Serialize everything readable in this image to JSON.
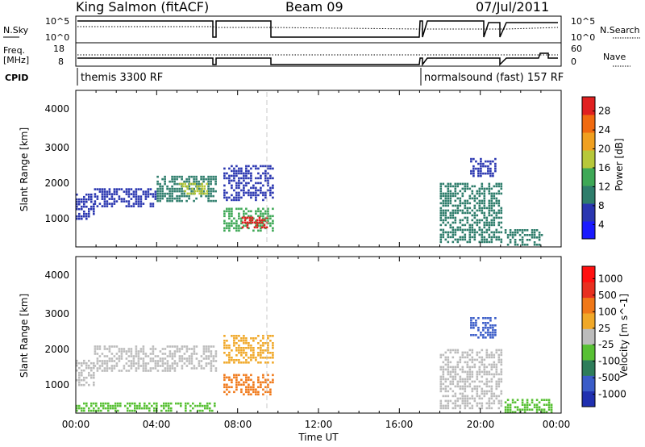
{
  "header": {
    "station": "King Salmon (fitACF)",
    "beam": "Beam 09",
    "date": "07/Jul/2011"
  },
  "side_labels": {
    "nsky": "N.Sky",
    "freq_line1": "Freq.",
    "freq_line2": "[MHz]",
    "cpid": "CPID",
    "nsearch": "N.Search",
    "nave": "Nave"
  },
  "small_axes": {
    "nsky_ticks": [
      "10^5",
      "10^0"
    ],
    "nsearch_ticks": [
      "10^5",
      "10^0"
    ],
    "freq_ticks": [
      "18",
      "8"
    ],
    "nave_ticks": [
      "60",
      "0"
    ]
  },
  "cpid_labels": [
    "themis 3300 RF",
    "normalsound (fast) 157 RF"
  ],
  "time_axis": {
    "label": "Time UT",
    "ticks": [
      "00:00",
      "04:00",
      "08:00",
      "12:00",
      "16:00",
      "20:00",
      "00:00"
    ]
  },
  "colors": {
    "power": [
      "#1a1aff",
      "#2a36b0",
      "#2e7d6b",
      "#3ea856",
      "#b7c83a",
      "#f0a020",
      "#f06a10",
      "#e02020"
    ],
    "velocity": [
      "#2030b0",
      "#3a5cc8",
      "#2e7d5a",
      "#58c034",
      "#bcbcbc",
      "#f0a828",
      "#f07818",
      "#e83020",
      "#ff1010"
    ]
  },
  "chart_data": [
    {
      "type": "heatmap",
      "panel": "power",
      "ylabel": "Slant Range [km]",
      "xlim_hours": [
        0,
        24
      ],
      "ylim_km": [
        200,
        4600
      ],
      "yticks": [
        "4000",
        "3000",
        "2000",
        "1000"
      ],
      "colorbar": {
        "label": "Power [dB]",
        "ticks": [
          "28",
          "24",
          "20",
          "16",
          "12",
          "8",
          "4"
        ]
      },
      "echo_regions": [
        {
          "t0": 0.0,
          "t1": 0.9,
          "r0": 1000,
          "r1": 1700,
          "level": 1
        },
        {
          "t0": 0.9,
          "t1": 4.0,
          "r0": 1350,
          "r1": 1850,
          "level": 1
        },
        {
          "t0": 4.0,
          "t1": 6.9,
          "r0": 1500,
          "r1": 2200,
          "level": 2
        },
        {
          "t0": 5.0,
          "t1": 6.5,
          "r0": 1700,
          "r1": 2000,
          "level": 4
        },
        {
          "t0": 7.3,
          "t1": 9.7,
          "r0": 1500,
          "r1": 2500,
          "level": 1
        },
        {
          "t0": 7.3,
          "t1": 9.7,
          "r0": 650,
          "r1": 1300,
          "level": 3
        },
        {
          "t0": 8.2,
          "t1": 9.4,
          "r0": 750,
          "r1": 1050,
          "level": 7
        },
        {
          "t0": 18.0,
          "t1": 21.0,
          "r0": 300,
          "r1": 2000,
          "level": 2
        },
        {
          "t0": 19.5,
          "t1": 20.7,
          "r0": 2200,
          "r1": 2700,
          "level": 1
        },
        {
          "t0": 21.2,
          "t1": 23.0,
          "r0": 250,
          "r1": 700,
          "level": 2
        }
      ]
    },
    {
      "type": "heatmap",
      "panel": "velocity",
      "ylabel": "Slant Range [km]",
      "xlim_hours": [
        0,
        24
      ],
      "ylim_km": [
        200,
        4600
      ],
      "yticks": [
        "4000",
        "3000",
        "2000",
        "1000"
      ],
      "colorbar": {
        "label": "Velocity [m s^-1]",
        "ticks": [
          "1000",
          "500",
          "100",
          "25",
          "-25",
          "-100",
          "-500",
          "-1000"
        ]
      },
      "echo_regions": [
        {
          "t0": 0.0,
          "t1": 0.9,
          "r0": 1000,
          "r1": 1700,
          "level": 4
        },
        {
          "t0": 0.9,
          "t1": 6.9,
          "r0": 1400,
          "r1": 2100,
          "level": 4
        },
        {
          "t0": 0.0,
          "t1": 6.9,
          "r0": 250,
          "r1": 500,
          "level": 3
        },
        {
          "t0": 7.3,
          "t1": 9.7,
          "r0": 1600,
          "r1": 2400,
          "level": 5
        },
        {
          "t0": 7.3,
          "t1": 9.7,
          "r0": 700,
          "r1": 1300,
          "level": 6
        },
        {
          "t0": 18.0,
          "t1": 21.0,
          "r0": 300,
          "r1": 2000,
          "level": 4
        },
        {
          "t0": 19.5,
          "t1": 20.7,
          "r0": 2300,
          "r1": 2900,
          "level": 1
        },
        {
          "t0": 21.2,
          "t1": 23.5,
          "r0": 250,
          "r1": 600,
          "level": 3
        }
      ]
    }
  ]
}
